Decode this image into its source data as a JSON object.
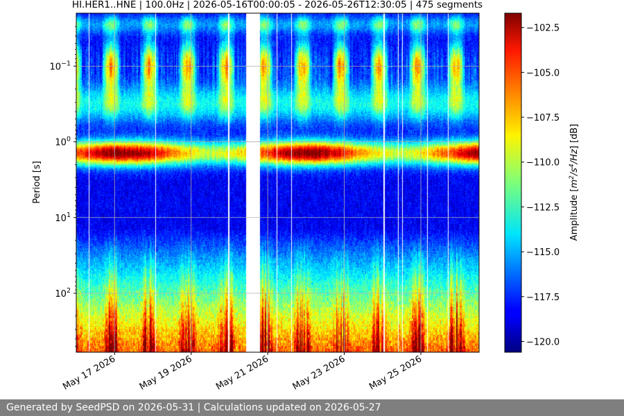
{
  "chart_data": {
    "type": "heatmap",
    "title": "HI.HER1..HNE | 100.0Hz | 2026-05-16T00:00:05 - 2026-05-26T12:30:05 | 475 segments",
    "xlabel": "",
    "ylabel": "Period [s]",
    "colorbar_label": "Amplitude [m²/s⁴/Hz] [dB]",
    "colorbar_label_parts": {
      "prefix": "Amplitude [",
      "m": "m",
      "e1": "2",
      "sep": "/s",
      "e2": "4",
      "hz": "/Hz",
      "suffix": "] [dB]"
    },
    "colormap": "jet",
    "x_axis": {
      "type": "date",
      "range": [
        "2026-05-16T00:00:05",
        "2026-05-26T12:30:05"
      ],
      "ticks": [
        {
          "value": "2026-05-17",
          "label": "May 17 2026"
        },
        {
          "value": "2026-05-19",
          "label": "May 19 2026"
        },
        {
          "value": "2026-05-21",
          "label": "May 21 2026"
        },
        {
          "value": "2026-05-23",
          "label": "May 23 2026"
        },
        {
          "value": "2026-05-25",
          "label": "May 25 2026"
        }
      ]
    },
    "y_axis": {
      "scale": "log",
      "inverted": true,
      "range": [
        0.02,
        600
      ],
      "ticks": [
        {
          "value": 0.1,
          "base": "10",
          "exp": "−1"
        },
        {
          "value": 1,
          "base": "10",
          "exp": "0"
        },
        {
          "value": 10,
          "base": "10",
          "exp": "1"
        },
        {
          "value": 100,
          "base": "10",
          "exp": "2"
        }
      ]
    },
    "color_range": [
      -120.6,
      -101.7
    ],
    "colorbar_ticks": [
      "−102.5",
      "−105.0",
      "−107.5",
      "−110.0",
      "−112.5",
      "−115.0",
      "−117.5",
      "−120.0"
    ],
    "colorbar_tick_values": [
      -102.5,
      -105.0,
      -107.5,
      -110.0,
      -112.5,
      -115.0,
      -117.5,
      -120.0
    ],
    "grid": true,
    "segments": 475,
    "data_gaps": [
      {
        "start": "2026-05-20T10:40:00",
        "end": "2026-05-20T19:00:00"
      }
    ],
    "approx_levels_db": {
      "period_0.1s_peaks": -102.5,
      "period_1s_microseism_band": -103.0,
      "period_2_to_20s_quiet": -119.0,
      "period_over_100s": -102.0
    }
  },
  "footer": {
    "text": "Generated by SeedPSD on 2026-05-31 | Calculations updated on 2026-05-27"
  }
}
